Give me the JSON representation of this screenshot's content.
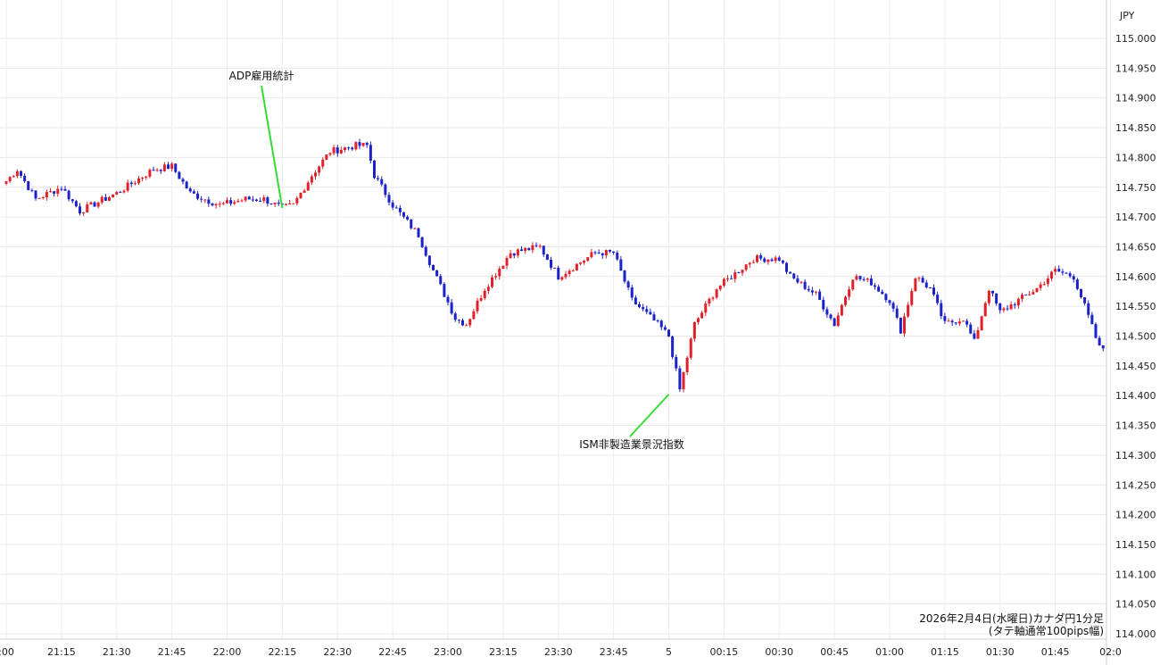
{
  "chart_data": {
    "type": "candlestick",
    "currency_label": "JPY",
    "caption_line1": "2026年2月4日(水曜日)カナダ円1分足",
    "caption_line2": "(タテ軸通常100pips幅)",
    "ylim": [
      114.0,
      115.0
    ],
    "y_ticks": [
      "115.000",
      "114.950",
      "114.900",
      "114.850",
      "114.800",
      "114.750",
      "114.700",
      "114.650",
      "114.600",
      "114.550",
      "114.500",
      "114.450",
      "114.400",
      "114.350",
      "114.300",
      "114.250",
      "114.200",
      "114.150",
      "114.100",
      "114.050",
      "114.000"
    ],
    "x_ticks": [
      ":00",
      "21:15",
      "21:30",
      "21:45",
      "22:00",
      "22:15",
      "22:30",
      "22:45",
      "23:00",
      "23:15",
      "23:30",
      "23:45",
      "5",
      "00:15",
      "00:30",
      "00:45",
      "01:00",
      "01:15",
      "01:30",
      "01:45",
      "02:0"
    ],
    "up_color": "#e0202a",
    "down_color": "#1a22c8",
    "annotation_color": "#33dd33",
    "annotations": [
      {
        "label": "ADP雇用統計",
        "time": "22:15",
        "price": 114.715
      },
      {
        "label": "ISM非製造業景況指数",
        "time": "00:00",
        "price": 114.402
      }
    ],
    "anchors": [
      [
        0,
        114.76
      ],
      [
        3,
        114.78
      ],
      [
        8,
        114.73
      ],
      [
        15,
        114.75
      ],
      [
        20,
        114.71
      ],
      [
        30,
        114.74
      ],
      [
        40,
        114.78
      ],
      [
        45,
        114.785
      ],
      [
        50,
        114.74
      ],
      [
        58,
        114.72
      ],
      [
        65,
        114.73
      ],
      [
        70,
        114.73
      ],
      [
        75,
        114.715
      ],
      [
        78,
        114.72
      ],
      [
        83,
        114.77
      ],
      [
        88,
        114.81
      ],
      [
        95,
        114.82
      ],
      [
        98,
        114.82
      ],
      [
        100,
        114.77
      ],
      [
        105,
        114.72
      ],
      [
        112,
        114.67
      ],
      [
        116,
        114.61
      ],
      [
        122,
        114.53
      ],
      [
        125,
        114.52
      ],
      [
        130,
        114.58
      ],
      [
        137,
        114.64
      ],
      [
        145,
        114.65
      ],
      [
        150,
        114.6
      ],
      [
        155,
        114.62
      ],
      [
        160,
        114.64
      ],
      [
        165,
        114.64
      ],
      [
        170,
        114.56
      ],
      [
        177,
        114.52
      ],
      [
        180,
        114.5
      ],
      [
        183,
        114.41
      ],
      [
        187,
        114.52
      ],
      [
        193,
        114.58
      ],
      [
        203,
        114.63
      ],
      [
        210,
        114.63
      ],
      [
        213,
        114.6
      ],
      [
        220,
        114.57
      ],
      [
        225,
        114.52
      ],
      [
        230,
        114.6
      ],
      [
        235,
        114.59
      ],
      [
        240,
        114.56
      ],
      [
        243,
        114.51
      ],
      [
        247,
        114.6
      ],
      [
        251,
        114.58
      ],
      [
        255,
        114.52
      ],
      [
        260,
        114.53
      ],
      [
        263,
        114.49
      ],
      [
        267,
        114.58
      ],
      [
        270,
        114.54
      ],
      [
        275,
        114.56
      ],
      [
        280,
        114.58
      ],
      [
        285,
        114.61
      ],
      [
        290,
        114.6
      ],
      [
        293,
        114.55
      ],
      [
        297,
        114.48
      ],
      [
        303,
        114.48
      ],
      [
        306,
        114.53
      ],
      [
        310,
        114.6
      ]
    ]
  }
}
